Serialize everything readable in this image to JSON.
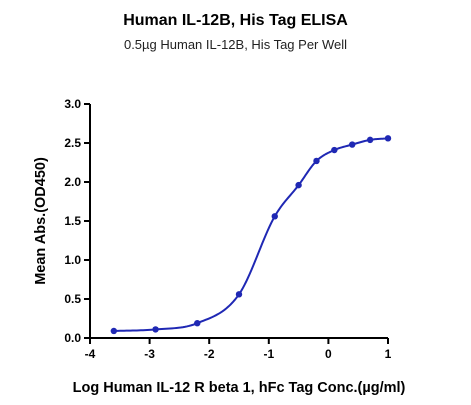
{
  "chart_data": {
    "type": "scatter",
    "title": "Human IL-12B, His Tag ELISA",
    "subtitle": "0.5µg Human IL-12B, His Tag Per Well",
    "xlabel": "Log Human IL-12 R beta 1, hFc Tag Conc.(µg/ml)",
    "ylabel": "Mean Abs.(OD450)",
    "xlim": [
      -4,
      1
    ],
    "ylim": [
      0,
      3
    ],
    "x_ticks": [
      "-4",
      "-3",
      "-2",
      "-1",
      "0",
      "1"
    ],
    "y_ticks": [
      "0.0",
      "0.5",
      "1.0",
      "1.5",
      "2.0",
      "2.5",
      "3.0"
    ],
    "grid": false,
    "fit": "sigmoidal curve",
    "colors": {
      "series": "#1f28b4",
      "axis": "#000000"
    },
    "series": [
      {
        "x": [
          -3.6,
          -2.9,
          -2.2,
          -1.5,
          -0.9,
          -0.5,
          -0.2,
          0.1,
          0.4,
          0.7,
          1.0
        ],
        "y": [
          0.09,
          0.11,
          0.19,
          0.56,
          1.56,
          1.96,
          2.27,
          2.41,
          2.48,
          2.54,
          2.56
        ]
      }
    ]
  }
}
